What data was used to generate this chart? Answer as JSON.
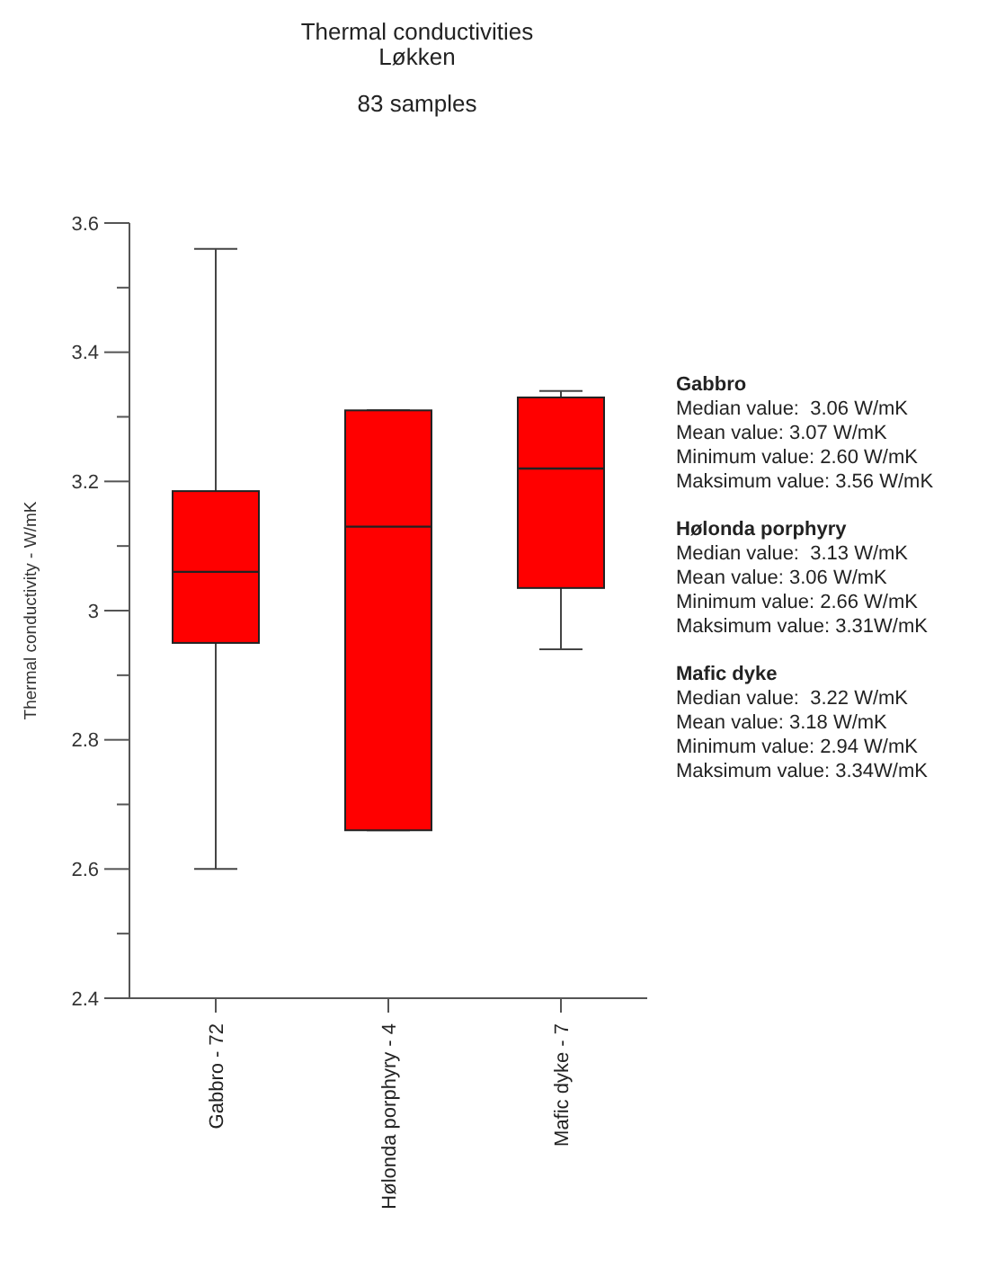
{
  "chart_data": {
    "type": "box",
    "title": "Thermal conductivities\nLøkken",
    "subtitle": "83 samples",
    "ylabel": "Thermal conductivity - W/mK",
    "categories": [
      "Gabbro - 72",
      "Hølonda porphyry - 4",
      "Mafic dyke - 7"
    ],
    "color": "#ff0000",
    "boxes": [
      {
        "low": 2.6,
        "q1": 2.95,
        "median": 3.06,
        "q3": 3.185,
        "high": 3.56
      },
      {
        "low": 2.66,
        "q1": 2.66,
        "median": 3.13,
        "q3": 3.31,
        "high": 3.31
      },
      {
        "low": 2.94,
        "q1": 3.035,
        "median": 3.22,
        "q3": 3.33,
        "high": 3.34
      }
    ],
    "ylim": [
      2.4,
      3.6
    ],
    "yticks": [
      2.4,
      {
        "value": 2.5,
        "label": null
      },
      2.6,
      {
        "value": 2.7,
        "label": null
      },
      2.8,
      {
        "value": 2.9,
        "label": null
      },
      3,
      {
        "value": 3.1,
        "label": null
      },
      3.2,
      {
        "value": 3.3,
        "label": null
      },
      3.4,
      {
        "value": 3.5,
        "label": null
      },
      3.6
    ],
    "grid": false,
    "annotations": [
      "Gabbro\nMedian value:  3.06 W/mK\nMean value: 3.07 W/mK\nMinimum value: 2.60 W/mK\nMaksimum value: 3.56 W/mK",
      "Hølonda porphyry\nMedian value:  3.13 W/mK\nMean value: 3.06 W/mK\nMinimum value: 2.66 W/mK\nMaksimum value: 3.31W/mK",
      "Mafic dyke\nMedian value:  3.22 W/mK\nMean value: 3.18 W/mK\nMinimum value: 2.94 W/mK\nMaksimum value: 3.34W/mK"
    ]
  }
}
